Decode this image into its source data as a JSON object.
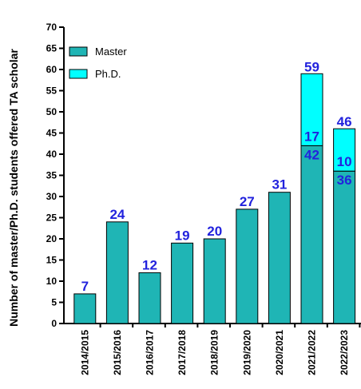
{
  "chart_data": {
    "type": "bar",
    "stacked": true,
    "categories": [
      "2014/2015",
      "2015/2016",
      "2016/2017",
      "2017/2018",
      "2018/2019",
      "2019/2020",
      "2020/2021",
      "2021/2022",
      "2022/2023"
    ],
    "series": [
      {
        "name": "Master",
        "values": [
          7,
          24,
          12,
          19,
          20,
          27,
          31,
          42,
          36
        ],
        "color": "#1fb5b5"
      },
      {
        "name": "Ph.D.",
        "values": [
          0,
          0,
          0,
          0,
          0,
          0,
          0,
          17,
          10
        ],
        "color": "#00ffff"
      }
    ],
    "totals": [
      7,
      24,
      12,
      19,
      20,
      27,
      31,
      59,
      46
    ],
    "ylabel": "Number of master/Ph.D. students offered TA scholar",
    "xlabel": "",
    "ylim": [
      0,
      70
    ],
    "yticks": [
      0,
      5,
      10,
      15,
      20,
      25,
      30,
      35,
      40,
      45,
      50,
      55,
      60,
      65,
      70
    ],
    "grid": false,
    "legend_position": "top-left",
    "label_color": "#2222dd"
  }
}
